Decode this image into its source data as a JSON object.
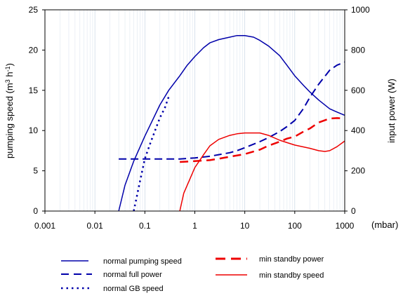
{
  "chart_data": {
    "type": "line",
    "x_scale": "log",
    "xlim": [
      0.001,
      1000
    ],
    "ylim_left": [
      0,
      25
    ],
    "ylim_right": [
      0,
      1000
    ],
    "xlabel": "(mbar)",
    "ylabel_left_main": "pumping speed (m",
    "ylabel_left_sup1": "3",
    "ylabel_left_mid": " h",
    "ylabel_left_sup2": "-1",
    "ylabel_left_end": ")",
    "ylabel_right": "input power (W)",
    "x_ticks": [
      {
        "value": 0.001,
        "label": "0.001"
      },
      {
        "value": 0.01,
        "label": "0.01"
      },
      {
        "value": 0.1,
        "label": "0.1"
      },
      {
        "value": 1,
        "label": "1"
      },
      {
        "value": 10,
        "label": "10"
      },
      {
        "value": 100,
        "label": "100"
      },
      {
        "value": 1000,
        "label": "1000"
      }
    ],
    "y_left_ticks": [
      {
        "value": 0,
        "label": "0"
      },
      {
        "value": 5,
        "label": "5"
      },
      {
        "value": 10,
        "label": "10"
      },
      {
        "value": 15,
        "label": "15"
      },
      {
        "value": 20,
        "label": "20"
      },
      {
        "value": 25,
        "label": "25"
      }
    ],
    "y_right_ticks": [
      {
        "value": 0,
        "label": "0"
      },
      {
        "value": 200,
        "label": "200"
      },
      {
        "value": 400,
        "label": "400"
      },
      {
        "value": 600,
        "label": "600"
      },
      {
        "value": 800,
        "label": "800"
      },
      {
        "value": 1000,
        "label": "1000"
      }
    ],
    "grid": "vertical-minor",
    "legend_position": "bottom",
    "series": [
      {
        "name": "normal pumping speed",
        "axis": "left",
        "color": "#0000aa",
        "style": "solid",
        "points": [
          [
            0.03,
            0
          ],
          [
            0.04,
            3.2
          ],
          [
            0.06,
            6.2
          ],
          [
            0.1,
            9.3
          ],
          [
            0.2,
            13.2
          ],
          [
            0.3,
            15.0
          ],
          [
            0.5,
            16.8
          ],
          [
            0.7,
            18.1
          ],
          [
            1,
            19.2
          ],
          [
            1.5,
            20.3
          ],
          [
            2,
            20.9
          ],
          [
            3,
            21.3
          ],
          [
            5,
            21.6
          ],
          [
            7,
            21.8
          ],
          [
            10,
            21.8
          ],
          [
            15,
            21.6
          ],
          [
            20,
            21.2
          ],
          [
            30,
            20.5
          ],
          [
            50,
            19.3
          ],
          [
            70,
            18.1
          ],
          [
            100,
            16.8
          ],
          [
            150,
            15.6
          ],
          [
            200,
            14.8
          ],
          [
            300,
            13.8
          ],
          [
            500,
            12.7
          ],
          [
            700,
            12.3
          ],
          [
            1000,
            11.9
          ]
        ]
      },
      {
        "name": "normal full power",
        "axis": "right",
        "color": "#0000aa",
        "style": "dashed",
        "points": [
          [
            0.03,
            259
          ],
          [
            0.1,
            259
          ],
          [
            0.5,
            259
          ],
          [
            1,
            264
          ],
          [
            2,
            272
          ],
          [
            3,
            280
          ],
          [
            5,
            290
          ],
          [
            7,
            300
          ],
          [
            10,
            315
          ],
          [
            20,
            345
          ],
          [
            30,
            365
          ],
          [
            50,
            395
          ],
          [
            70,
            420
          ],
          [
            100,
            450
          ],
          [
            150,
            510
          ],
          [
            200,
            565
          ],
          [
            300,
            630
          ],
          [
            500,
            700
          ],
          [
            700,
            725
          ],
          [
            1000,
            740
          ]
        ]
      },
      {
        "name": "normal GB speed",
        "axis": "left",
        "color": "#0000aa",
        "style": "dotted",
        "points": [
          [
            0.06,
            0
          ],
          [
            0.08,
            3.7
          ],
          [
            0.1,
            6.5
          ],
          [
            0.13,
            8.5
          ],
          [
            0.2,
            11.6
          ],
          [
            0.25,
            12.8
          ],
          [
            0.3,
            14.2
          ]
        ]
      },
      {
        "name": "min standby power",
        "axis": "right",
        "color": "#ee0000",
        "style": "dashed",
        "points": [
          [
            0.5,
            244
          ],
          [
            1,
            248
          ],
          [
            2,
            253
          ],
          [
            3,
            260
          ],
          [
            5,
            270
          ],
          [
            10,
            283
          ],
          [
            20,
            305
          ],
          [
            30,
            325
          ],
          [
            50,
            345
          ],
          [
            70,
            360
          ],
          [
            100,
            370
          ],
          [
            150,
            395
          ],
          [
            200,
            410
          ],
          [
            300,
            440
          ],
          [
            500,
            460
          ],
          [
            700,
            462
          ],
          [
            1000,
            460
          ]
        ]
      },
      {
        "name": "min standby speed",
        "axis": "left",
        "color": "#ee0000",
        "style": "solid",
        "points": [
          [
            0.5,
            0
          ],
          [
            0.6,
            2.2
          ],
          [
            0.8,
            4.0
          ],
          [
            1,
            5.4
          ],
          [
            1.5,
            7.0
          ],
          [
            2,
            8.1
          ],
          [
            3,
            8.9
          ],
          [
            5,
            9.4
          ],
          [
            7,
            9.6
          ],
          [
            10,
            9.7
          ],
          [
            20,
            9.7
          ],
          [
            30,
            9.4
          ],
          [
            50,
            8.8
          ],
          [
            70,
            8.5
          ],
          [
            100,
            8.2
          ],
          [
            200,
            7.8
          ],
          [
            300,
            7.5
          ],
          [
            400,
            7.4
          ],
          [
            500,
            7.5
          ],
          [
            700,
            8.0
          ],
          [
            1000,
            8.7
          ]
        ]
      }
    ]
  },
  "legend": {
    "items": [
      {
        "key": "normal-pumping-speed",
        "label": "normal pumping speed"
      },
      {
        "key": "normal-full-power",
        "label": "normal full power"
      },
      {
        "key": "normal-gb-speed",
        "label": "normal GB speed"
      },
      {
        "key": "min-standby-power",
        "label": "min standby power"
      },
      {
        "key": "min-standby-speed",
        "label": "min standby speed"
      }
    ]
  }
}
